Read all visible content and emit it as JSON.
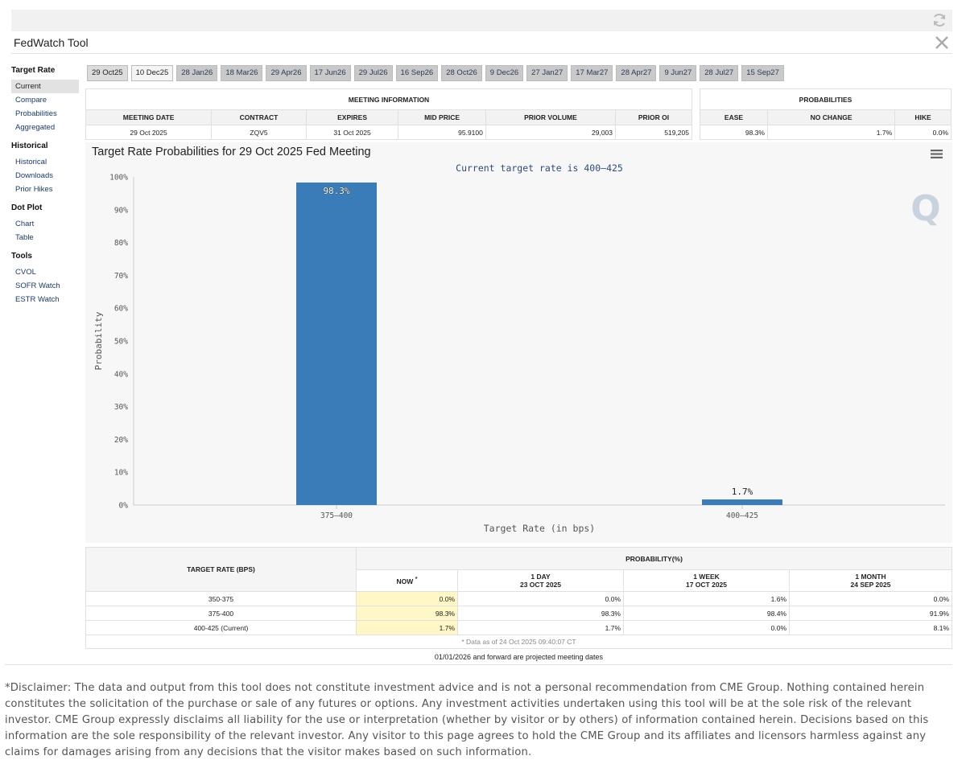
{
  "app": {
    "title": "FedWatch Tool"
  },
  "sidebar": {
    "groups": [
      {
        "heading": "Target Rate",
        "items": [
          "Current",
          "Compare",
          "Probabilities",
          "Aggregated"
        ]
      },
      {
        "heading": "Historical",
        "items": [
          "Historical",
          "Downloads",
          "Prior Hikes"
        ]
      },
      {
        "heading": "Dot Plot",
        "items": [
          "Chart",
          "Table"
        ]
      },
      {
        "heading": "Tools",
        "items": [
          "CVOL",
          "SOFR Watch",
          "ESTR Watch"
        ]
      }
    ]
  },
  "tabs": [
    "29 Oct25",
    "10 Dec25",
    "28 Jan26",
    "18 Mar26",
    "29 Apr26",
    "17 Jun26",
    "29 Jul26",
    "16 Sep26",
    "28 Oct26",
    "9 Dec26",
    "27 Jan27",
    "17 Mar27",
    "28 Apr27",
    "9 Jun27",
    "28 Jul27",
    "15 Sep27"
  ],
  "meeting_info": {
    "header": "MEETING INFORMATION",
    "columns": [
      "MEETING DATE",
      "CONTRACT",
      "EXPIRES",
      "MID PRICE",
      "PRIOR VOLUME",
      "PRIOR OI"
    ],
    "values": [
      "29 Oct 2025",
      "ZQV5",
      "31 Oct 2025",
      "95.9100",
      "29,003",
      "519,205"
    ]
  },
  "probabilities": {
    "header": "PROBABILITIES",
    "columns": [
      "EASE",
      "NO CHANGE",
      "HIKE"
    ],
    "values": [
      "98.3%",
      "1.7%",
      "0.0%"
    ]
  },
  "chart": {
    "title": "Target Rate Probabilities for 29 Oct 2025 Fed Meeting"
  },
  "chart_data": {
    "type": "bar",
    "title": "Target Rate Probabilities for 29 Oct 2025 Fed Meeting",
    "subtitle": "Current target rate is 400–425",
    "categories": [
      "375–400",
      "400–425"
    ],
    "values": [
      98.3,
      1.7
    ],
    "data_labels": [
      "98.3%",
      "1.7%"
    ],
    "xlabel": "Target Rate (in bps)",
    "ylabel": "Probability",
    "ylim": [
      0,
      100
    ],
    "yticks": [
      "0%",
      "10%",
      "20%",
      "30%",
      "40%",
      "50%",
      "60%",
      "70%",
      "80%",
      "90%",
      "100%"
    ],
    "bar_color": "#3a7cb8",
    "grid": false,
    "watermark": "Q"
  },
  "rates_table": {
    "col_target": "TARGET RATE (BPS)",
    "col_prob": "PROBABILITY(%)",
    "sub_now": "NOW",
    "sub_now_mark": "*",
    "sub_1day": "1 DAY",
    "sub_1day_date": "23 OCT 2025",
    "sub_1week": "1 WEEK",
    "sub_1week_date": "17 OCT 2025",
    "sub_1month": "1 MONTH",
    "sub_1month_date": "24 SEP 2025",
    "rows": [
      {
        "rate": "350-375",
        "now": "0.0%",
        "day": "0.0%",
        "week": "1.6%",
        "month": "0.0%"
      },
      {
        "rate": "375-400",
        "now": "98.3%",
        "day": "98.3%",
        "week": "98.4%",
        "month": "91.9%"
      },
      {
        "rate": "400-425 (Current)",
        "now": "1.7%",
        "day": "1.7%",
        "week": "0.0%",
        "month": "8.1%"
      }
    ],
    "footnote": "* Data as of 24 Oct 2025 09:40:07 CT"
  },
  "projected_note": "01/01/2026 and forward are projected meeting dates",
  "disclaimer": "*Disclaimer: The data and output from this tool does not constitute investment advice and is not a personal recommendation from CME Group.  Nothing contained herein constitutes the solicitation of the purchase or sale of any futures or options.  Any investment activities undertaken using this tool will be at the sole risk of the relevant investor.  CME Group expressly disclaims all liability for the use or interpretation (whether by visitor or by others) of information contained herein. Decisions based on this information are the sole responsibility of the relevant investor.  Any visitor to this page agrees to hold the CME Group and its affiliates and licensors harmless against any claims for damages arising from any decisions that the visitor makes based on such information."
}
